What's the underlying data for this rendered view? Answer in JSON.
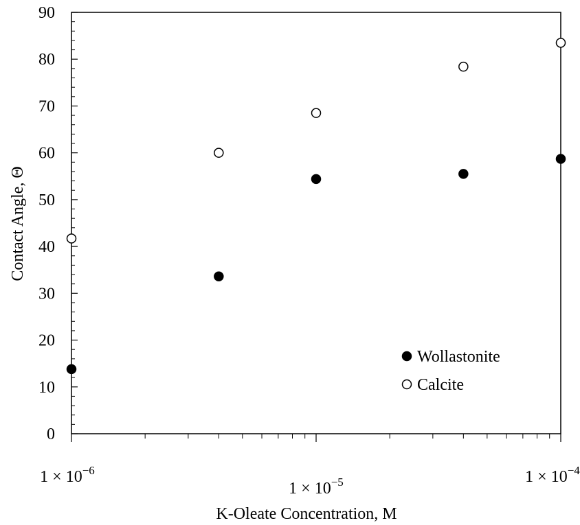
{
  "chart_data": {
    "type": "scatter",
    "xlabel": "K-Oleate Concentration, M",
    "ylabel": "Contact Angle, Θ",
    "xscale": "log",
    "xlim": [
      1e-06,
      0.0001
    ],
    "ylim": [
      0,
      90
    ],
    "yticks": [
      0,
      10,
      20,
      30,
      40,
      50,
      60,
      70,
      80,
      90
    ],
    "xticks": [
      {
        "value": 1e-06,
        "mantissa": "1 × 10",
        "exponent": "−6"
      },
      {
        "value": 1e-05,
        "mantissa": "1 × 10",
        "exponent": "−5"
      },
      {
        "value": 0.0001,
        "mantissa": "1 × 10",
        "exponent": "−4"
      }
    ],
    "grid": false,
    "legend_position": "lower-right",
    "series": [
      {
        "name": "Wollastonite",
        "marker": "filled-circle",
        "color": "#000000",
        "x": [
          1e-06,
          4e-06,
          1e-05,
          4e-05,
          0.0001
        ],
        "y": [
          13.8,
          33.6,
          54.4,
          55.5,
          58.7
        ]
      },
      {
        "name": "Calcite",
        "marker": "open-circle",
        "color": "#000000",
        "x": [
          1e-06,
          4e-06,
          1e-05,
          4e-05,
          0.0001
        ],
        "y": [
          41.7,
          60.0,
          68.5,
          78.4,
          83.5
        ]
      }
    ]
  }
}
